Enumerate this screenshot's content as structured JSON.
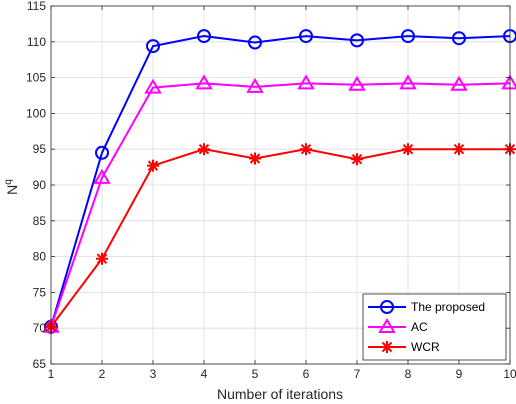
{
  "chart_data": {
    "type": "line",
    "xlabel": "Number of iterations",
    "ylabel": "N",
    "ylabel_sup": "q",
    "xlim": [
      1,
      10
    ],
    "ylim": [
      65,
      115
    ],
    "xticks": [
      1,
      2,
      3,
      4,
      5,
      6,
      7,
      8,
      9,
      10
    ],
    "yticks": [
      65,
      70,
      75,
      80,
      85,
      90,
      95,
      100,
      105,
      110,
      115
    ],
    "grid": true,
    "legend_position": "bottom-right",
    "x": [
      1,
      2,
      3,
      4,
      5,
      6,
      7,
      8,
      9,
      10
    ],
    "series": [
      {
        "name": "The proposed",
        "color": "#0000ff",
        "marker": "circle",
        "values": [
          70.2,
          94.5,
          109.4,
          110.8,
          109.9,
          110.8,
          110.2,
          110.8,
          110.5,
          110.8
        ]
      },
      {
        "name": "AC",
        "color": "#ff00ff",
        "marker": "triangle",
        "values": [
          70.2,
          91.0,
          103.6,
          104.2,
          103.7,
          104.2,
          104.0,
          104.2,
          104.0,
          104.2
        ]
      },
      {
        "name": "WCR",
        "color": "#ff0000",
        "marker": "star",
        "values": [
          70.2,
          79.7,
          92.7,
          95.0,
          93.7,
          95.0,
          93.6,
          95.0,
          95.0,
          95.0
        ]
      }
    ]
  }
}
